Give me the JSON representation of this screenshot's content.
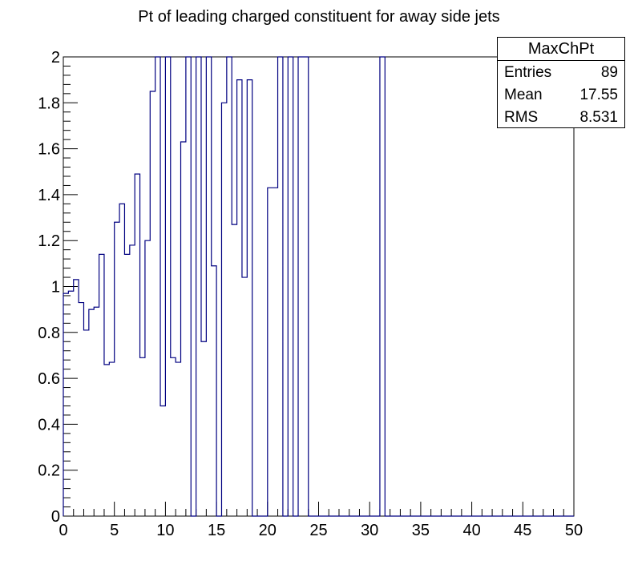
{
  "chart_data": {
    "type": "histogram",
    "title": "Pt of leading charged constituent for away side jets",
    "xlabel": "",
    "ylabel": "",
    "xlim": [
      0,
      50
    ],
    "ylim": [
      0,
      2
    ],
    "bin_width": 0.5,
    "x_ticks": [
      "0",
      "5",
      "10",
      "15",
      "20",
      "25",
      "30",
      "35",
      "40",
      "45",
      "50"
    ],
    "y_ticks": [
      "0",
      "0.2",
      "0.4",
      "0.6",
      "0.8",
      "1",
      "1.2",
      "1.4",
      "1.6",
      "1.8",
      "2"
    ],
    "line_color": "#000080",
    "values": [
      0.97,
      0.98,
      1.03,
      0.93,
      0.81,
      0.9,
      0.91,
      1.14,
      0.66,
      0.67,
      1.28,
      1.36,
      1.14,
      1.18,
      1.49,
      0.69,
      1.2,
      1.85,
      2.0,
      0.48,
      2.0,
      0.69,
      0.67,
      1.63,
      2.0,
      0.0,
      2.0,
      0.76,
      2.0,
      1.09,
      0.0,
      1.8,
      2.0,
      1.27,
      1.9,
      1.04,
      1.9,
      0.0,
      0.0,
      0.0,
      1.43,
      1.43,
      2.0,
      0.0,
      2.0,
      0.0,
      2.0,
      2.0,
      0,
      0,
      0,
      0,
      0,
      0,
      0,
      0,
      0,
      0,
      0,
      0,
      0,
      0,
      2.0,
      0,
      0,
      0,
      0,
      0,
      0,
      0,
      0,
      0,
      0,
      0,
      0,
      0,
      0,
      0,
      0,
      0,
      0,
      0,
      0,
      0,
      0,
      0,
      0,
      0,
      0,
      0,
      0,
      0,
      0,
      0,
      0,
      0,
      0,
      0,
      0,
      0
    ],
    "grid": false,
    "legend": "top-right"
  },
  "stats": {
    "name": "MaxChPt",
    "entries_label": "Entries",
    "entries_value": "89",
    "mean_label": "Mean",
    "mean_value": "17.55",
    "rms_label": "RMS",
    "rms_value": "8.531"
  }
}
